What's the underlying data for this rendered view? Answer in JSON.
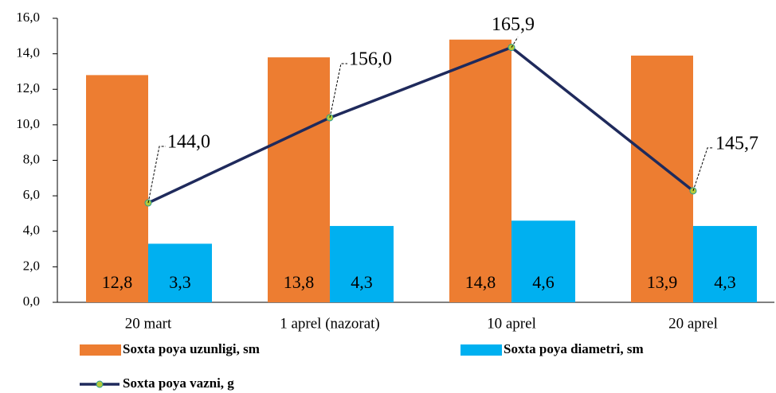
{
  "chart_data": {
    "type": "bar",
    "categories": [
      "20 mart",
      "1 aprel (nazorat)",
      "10 aprel",
      "20 aprel"
    ],
    "series": [
      {
        "name": "Soxta poya uzunligi, sm",
        "color": "#ed7d31",
        "values": [
          12.8,
          13.8,
          14.8,
          13.9
        ],
        "value_labels": [
          "12,8",
          "13,8",
          "14,8",
          "13,9"
        ]
      },
      {
        "name": "Soxta poya diametri, sm",
        "color": "#00b0f0",
        "values": [
          3.3,
          4.3,
          4.6,
          4.3
        ],
        "value_labels": [
          "3,3",
          "4,3",
          "4,6",
          "4,3"
        ]
      },
      {
        "name": "Soxta poya vazni, g",
        "type": "line",
        "axis": "y2",
        "color": "#1f2a5c",
        "marker_color": "#b5c93a",
        "values": [
          144.0,
          156.0,
          165.9,
          145.7
        ],
        "value_labels": [
          "144,0",
          "156,0",
          "165,9",
          "145,7"
        ]
      }
    ],
    "ylim": [
      0,
      16
    ],
    "yticks": [
      {
        "value": 0,
        "label": "0,0"
      },
      {
        "value": 2,
        "label": "2,0"
      },
      {
        "value": 4,
        "label": "4,0"
      },
      {
        "value": 6,
        "label": "6,0"
      },
      {
        "value": 8,
        "label": "8,0"
      },
      {
        "value": 10,
        "label": "10,0"
      },
      {
        "value": 12,
        "label": "12,0"
      },
      {
        "value": 14,
        "label": "14,0"
      },
      {
        "value": 16,
        "label": "16,0"
      }
    ],
    "y2lim": [
      130,
      170
    ],
    "grid": false
  }
}
